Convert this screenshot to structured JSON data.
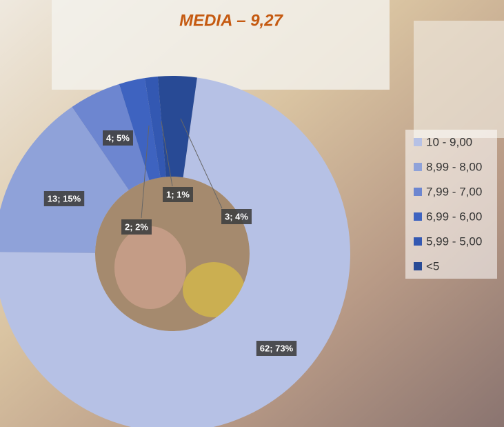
{
  "chart_data": {
    "type": "pie",
    "title": "MEDIA – 9,27",
    "categories": [
      "10 - 9,00",
      "8,99 - 8,00",
      "7,99 - 7,00",
      "6,99 - 6,00",
      "5,99 - 5,00",
      "<5"
    ],
    "values": [
      62,
      13,
      4,
      2,
      1,
      3
    ],
    "value_labels": [
      "62; 73%",
      "13; 15%",
      "4; 5%",
      "2; 2%",
      "1; 1%",
      "3; 4%"
    ],
    "colors": [
      "#b6c1e5",
      "#8fa2d9",
      "#6d86d0",
      "#3e63c0",
      "#3358b2",
      "#284a95"
    ],
    "donut": true,
    "legend": "right"
  }
}
